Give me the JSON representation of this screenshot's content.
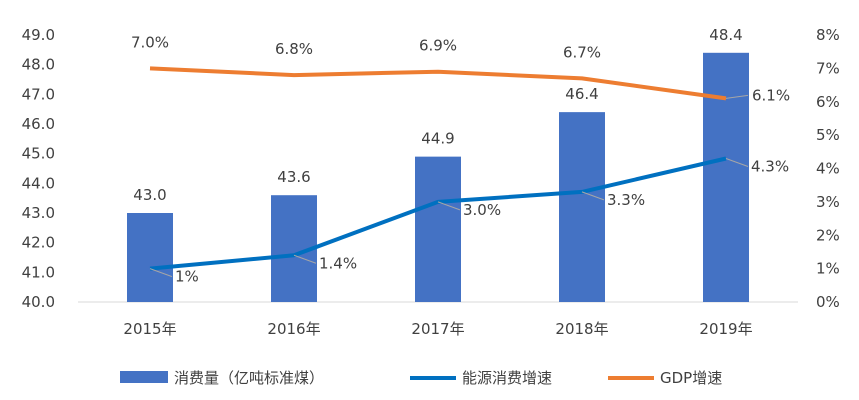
{
  "chart_data": {
    "type": "bar",
    "categories": [
      "2015年",
      "2016年",
      "2017年",
      "2018年",
      "2019年"
    ],
    "y_left": {
      "ylim": [
        40.0,
        49.0
      ],
      "ticks": [
        "40.0",
        "41.0",
        "42.0",
        "43.0",
        "44.0",
        "45.0",
        "46.0",
        "47.0",
        "48.0",
        "49.0"
      ]
    },
    "y_right": {
      "ylim": [
        0,
        8
      ],
      "ticks": [
        "0%",
        "1%",
        "2%",
        "3%",
        "4%",
        "5%",
        "6%",
        "7%",
        "8%"
      ]
    },
    "series": [
      {
        "name": "消费量（亿吨标准煤）",
        "type": "bar",
        "axis": "left",
        "color": "#4472C4",
        "values": [
          43.0,
          43.6,
          44.9,
          46.4,
          48.4
        ],
        "labels": [
          "43.0",
          "43.6",
          "44.9",
          "46.4",
          "48.4"
        ]
      },
      {
        "name": "能源消费增速",
        "type": "line",
        "axis": "right",
        "color": "#0070C0",
        "values": [
          1.0,
          1.4,
          3.0,
          3.3,
          4.3
        ],
        "labels": [
          "1%",
          "1.4%",
          "3.0%",
          "3.3%",
          "4.3%"
        ]
      },
      {
        "name": "GDP增速",
        "type": "line",
        "axis": "right",
        "color": "#ED7D31",
        "values": [
          7.0,
          6.8,
          6.9,
          6.7,
          6.1
        ],
        "labels": [
          "7.0%",
          "6.8%",
          "6.9%",
          "6.7%",
          "6.1%"
        ]
      }
    ],
    "grid": false,
    "legend": "bottom"
  }
}
